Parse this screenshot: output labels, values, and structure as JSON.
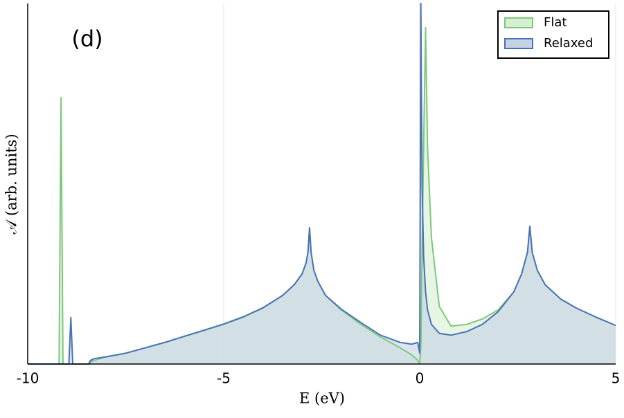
{
  "chart_data": {
    "type": "area",
    "annotations": [
      "(d)"
    ],
    "xlabel": "E (eV)",
    "ylabel": "𝒜 (arb. units)",
    "x": [
      -10,
      -9.2,
      -9.15,
      -9.1,
      -9.05,
      -9.0,
      -8.95,
      -8.9,
      -8.85,
      -8.8,
      -8.45,
      -8.4,
      -8.3,
      -8,
      -7.5,
      -7,
      -6.5,
      -6,
      -5.5,
      -5,
      -4.5,
      -4,
      -3.5,
      -3.2,
      -3,
      -2.9,
      -2.85,
      -2.81,
      -2.77,
      -2.7,
      -2.6,
      -2.4,
      -2,
      -1.5,
      -1,
      -0.5,
      -0.2,
      -0.05,
      0,
      0.03,
      0.06,
      0.1,
      0.15,
      0.2,
      0.3,
      0.5,
      0.8,
      1.2,
      1.6,
      2,
      2.4,
      2.6,
      2.75,
      2.81,
      2.87,
      3,
      3.2,
      3.6,
      4,
      4.5,
      5
    ],
    "series": [
      {
        "name": "Flat",
        "color": "#7dc87a",
        "fill": "#d6eed2",
        "values": [
          0,
          0,
          0.739,
          0,
          0,
          0,
          0,
          0,
          0,
          0,
          0,
          0.005,
          0.01,
          0.02,
          0.03,
          0.045,
          0.06,
          0.077,
          0.093,
          0.11,
          0.13,
          0.155,
          0.19,
          0.22,
          0.25,
          0.28,
          0.31,
          0.378,
          0.31,
          0.26,
          0.23,
          0.19,
          0.15,
          0.11,
          0.075,
          0.045,
          0.025,
          0.01,
          0,
          0.05,
          0.3,
          0.6,
          0.933,
          0.6,
          0.35,
          0.16,
          0.105,
          0.11,
          0.125,
          0.15,
          0.2,
          0.25,
          0.31,
          0.382,
          0.31,
          0.26,
          0.22,
          0.18,
          0.155,
          0.13,
          0.107
        ]
      },
      {
        "name": "Relaxed",
        "color": "#4a72b8",
        "fill": "#c5d2e6",
        "values": [
          0,
          0,
          0,
          0,
          0,
          0,
          0,
          0.129,
          0,
          0,
          0,
          0.01,
          0.015,
          0.02,
          0.03,
          0.045,
          0.06,
          0.077,
          0.094,
          0.111,
          0.131,
          0.156,
          0.19,
          0.22,
          0.25,
          0.28,
          0.31,
          0.378,
          0.31,
          0.26,
          0.23,
          0.19,
          0.152,
          0.115,
          0.08,
          0.06,
          0.055,
          0.06,
          0.03,
          1.0,
          0.5,
          0.3,
          0.2,
          0.15,
          0.11,
          0.085,
          0.08,
          0.09,
          0.11,
          0.145,
          0.2,
          0.25,
          0.31,
          0.382,
          0.31,
          0.26,
          0.22,
          0.18,
          0.155,
          0.13,
          0.107
        ]
      }
    ],
    "xlim": [
      -10,
      5
    ],
    "xticks": [
      -10,
      -5,
      0,
      5
    ],
    "ylim": [
      0,
      1
    ],
    "grid": true,
    "legend": "upper right"
  }
}
